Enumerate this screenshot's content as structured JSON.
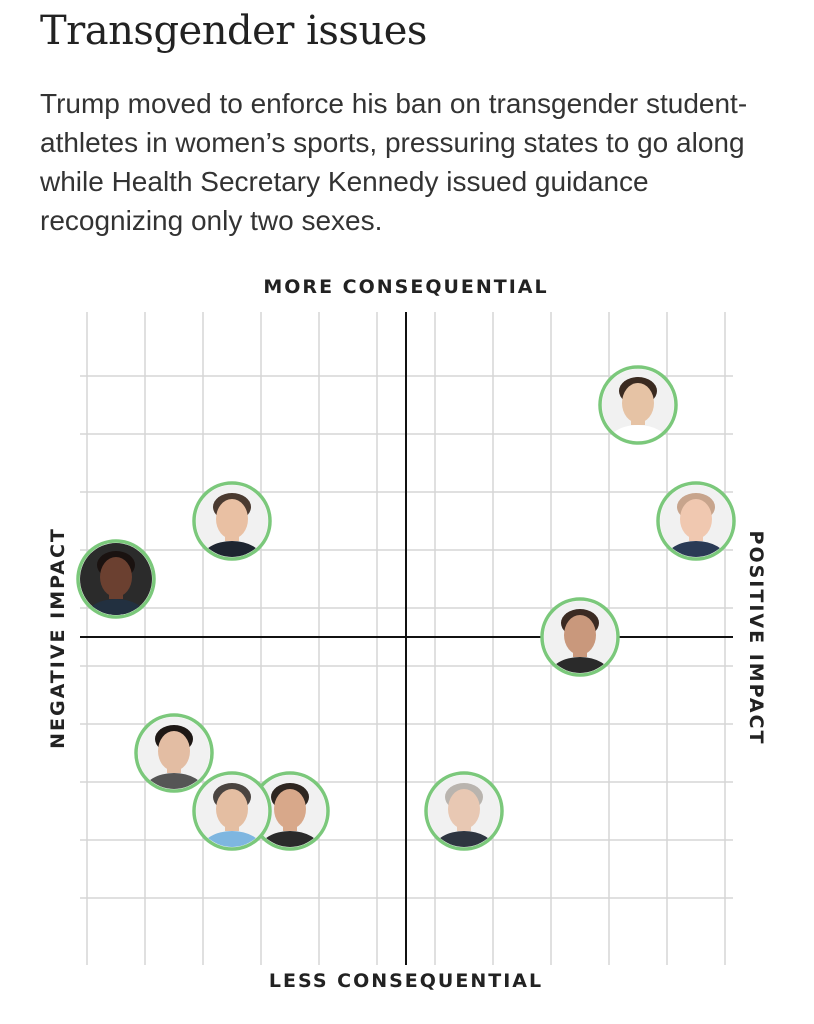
{
  "header": {
    "title": "Transgender issues",
    "subtitle": "Trump moved to enforce his ban on transgender student-athletes in women’s sports, pressuring states to go along while Health Secretary Kennedy issued guidance recognizing only two sexes."
  },
  "chart_data": {
    "type": "scatter",
    "axes": {
      "top": "MORE CONSEQUENTIAL",
      "bottom": "LESS CONSEQUENTIAL",
      "left": "NEGATIVE IMPACT",
      "right": "POSITIVE IMPACT"
    },
    "xlim": [
      -5,
      5
    ],
    "ylim": [
      -5,
      5
    ],
    "grid": true,
    "marker_style": "circular headshot with green ring",
    "colors": {
      "ring": "#7bc87b",
      "grid": "#d6d6d6",
      "axis": "#111111"
    },
    "points": [
      {
        "x": 4.0,
        "y": 4.0
      },
      {
        "x": 5.0,
        "y": 2.0
      },
      {
        "x": 3.0,
        "y": 0.0
      },
      {
        "x": -3.0,
        "y": 2.0
      },
      {
        "x": -5.0,
        "y": 1.0
      },
      {
        "x": -4.0,
        "y": -2.0
      },
      {
        "x": -2.0,
        "y": -3.0
      },
      {
        "x": -3.0,
        "y": -3.0
      },
      {
        "x": 1.0,
        "y": -3.0
      }
    ]
  }
}
